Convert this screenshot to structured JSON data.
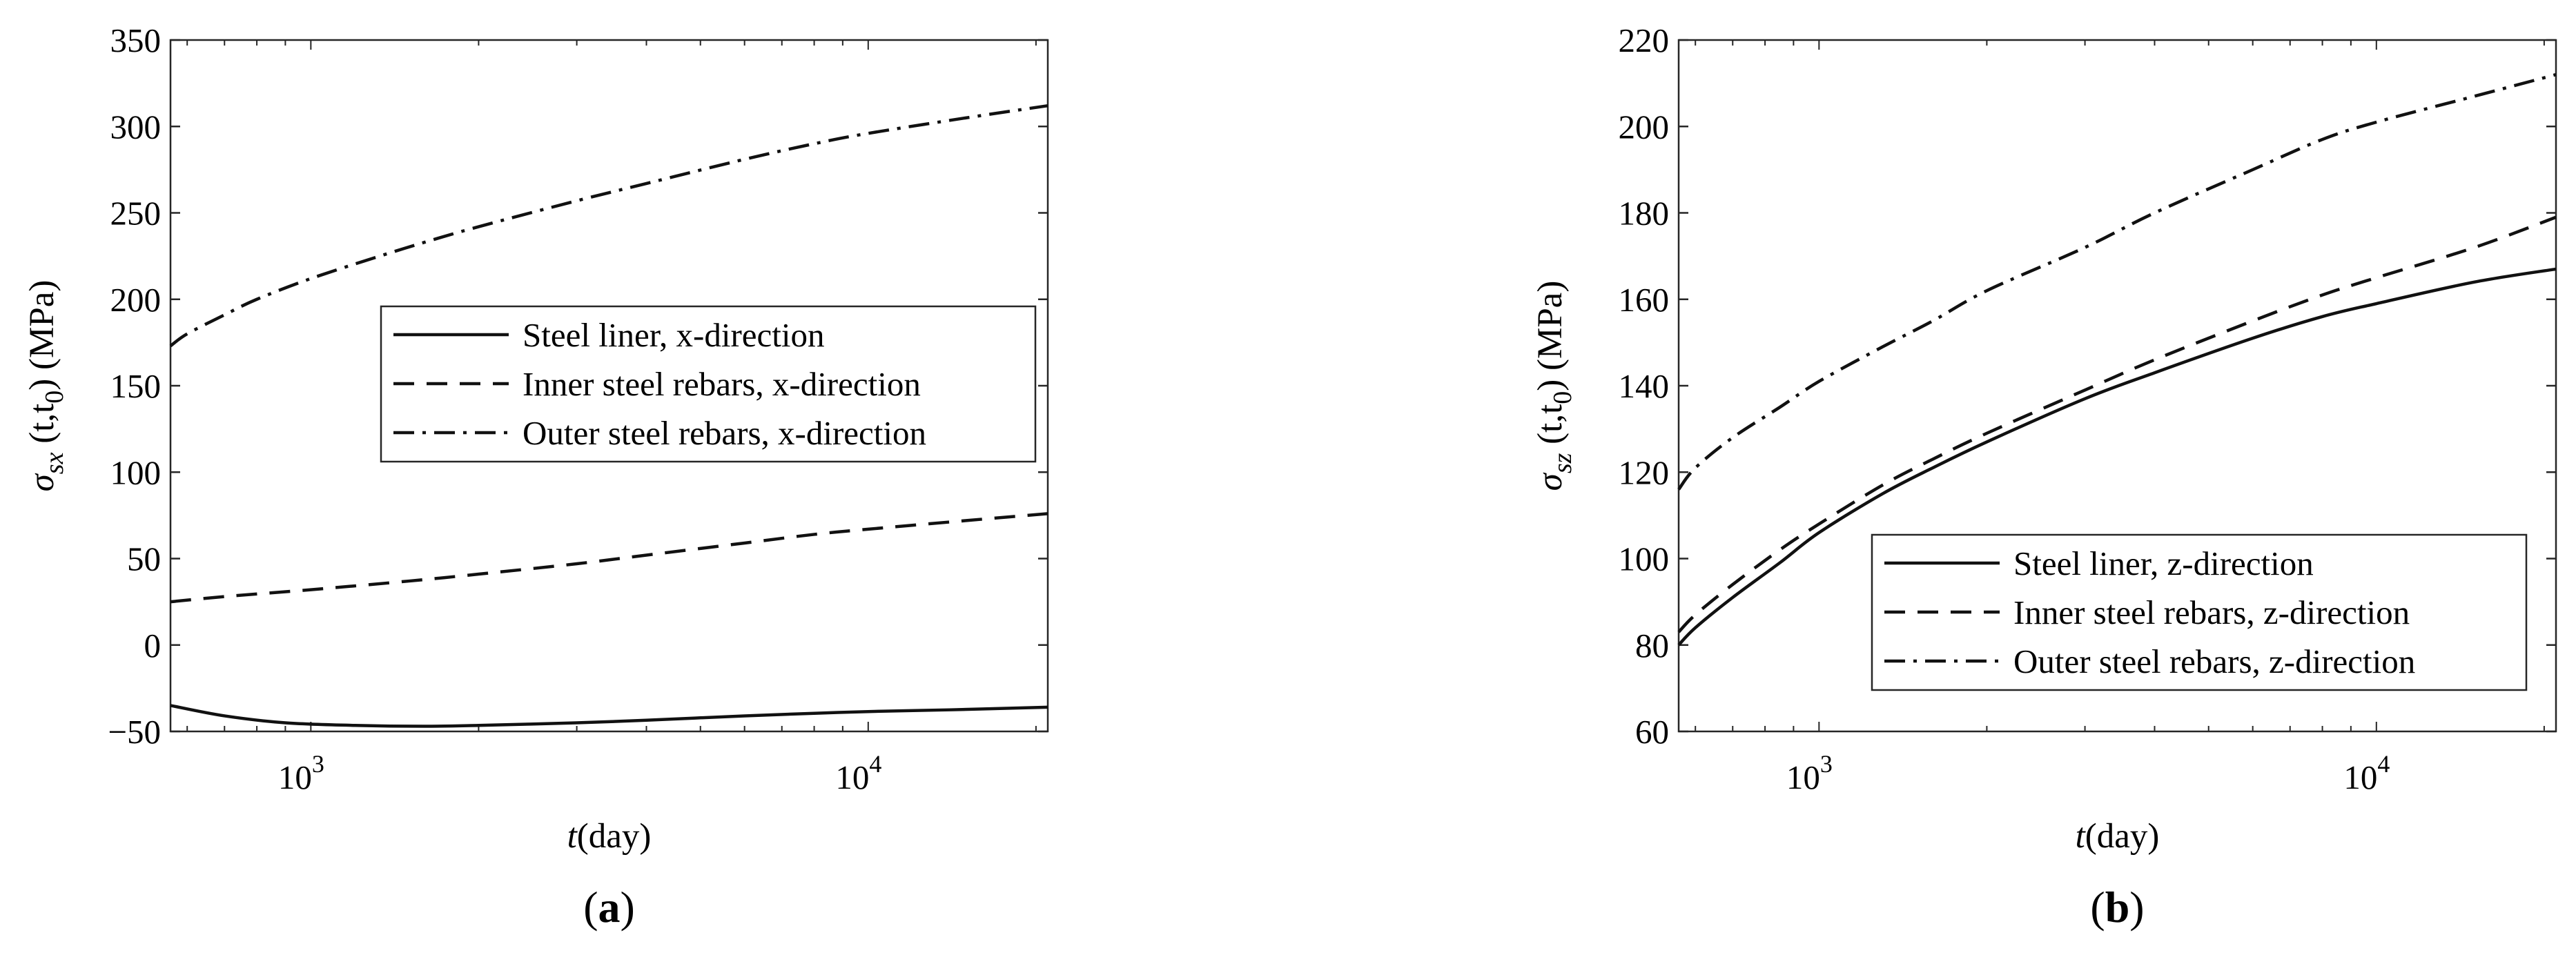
{
  "chart_data": [
    {
      "type": "line",
      "panel_label": "(a)",
      "xlabel_var": "t",
      "xlabel_unit": "(day)",
      "ylabel_sym": "σ",
      "ylabel_sub": "sx",
      "ylabel_args": "(t,t",
      "ylabel_args_sub": "0",
      "ylabel_unit": ") (MPa)",
      "xscale": "log",
      "xlim": [
        560,
        21000
      ],
      "ylim": [
        -50,
        350
      ],
      "yticks": [
        -50,
        0,
        50,
        100,
        150,
        200,
        250,
        300,
        350
      ],
      "xticks": [
        {
          "base": "10",
          "exp": "3",
          "value": 1000
        },
        {
          "base": "10",
          "exp": "4",
          "value": 10000
        }
      ],
      "legend_position": "center-right",
      "grid": false,
      "series": [
        {
          "name": "Steel liner, x-direction",
          "style": "solid",
          "x": [
            560,
            700,
            900,
            1200,
            1600,
            2000,
            3000,
            4000,
            6000,
            8000,
            10000,
            14000,
            21000
          ],
          "y": [
            -35,
            -41,
            -45,
            -46.5,
            -47,
            -46.5,
            -45,
            -43.5,
            -41,
            -39.5,
            -38.5,
            -37.5,
            -36
          ]
        },
        {
          "name": "Inner steel rebars, x-direction",
          "style": "dashed",
          "x": [
            560,
            700,
            1000,
            1500,
            2000,
            3000,
            4000,
            6000,
            8000,
            10000,
            15000,
            21000
          ],
          "y": [
            25,
            28,
            32,
            37,
            41,
            47,
            52,
            59,
            64,
            67,
            72,
            76
          ]
        },
        {
          "name": "Outer steel rebars, x-direction",
          "style": "dashdot",
          "x": [
            560,
            600,
            700,
            800,
            1000,
            1300,
            1600,
            2000,
            3000,
            4000,
            6000,
            8000,
            10000,
            15000,
            21000
          ],
          "y": [
            173,
            180,
            191,
            200,
            212,
            224,
            233,
            242,
            257,
            267,
            281,
            290,
            296,
            305,
            312
          ]
        }
      ]
    },
    {
      "type": "line",
      "panel_label": "(b)",
      "xlabel_var": "t",
      "xlabel_unit": "(day)",
      "ylabel_sym": "σ",
      "ylabel_sub": "sz",
      "ylabel_args": "(t,t",
      "ylabel_args_sub": "0",
      "ylabel_unit": ") (MPa)",
      "xscale": "log",
      "xlim": [
        560,
        21000
      ],
      "ylim": [
        60,
        220
      ],
      "yticks": [
        60,
        80,
        100,
        120,
        140,
        160,
        180,
        200,
        220
      ],
      "xticks": [
        {
          "base": "10",
          "exp": "3",
          "value": 1000
        },
        {
          "base": "10",
          "exp": "4",
          "value": 10000
        }
      ],
      "legend_position": "bottom-right",
      "grid": false,
      "series": [
        {
          "name": "Steel liner, z-direction",
          "style": "solid",
          "x": [
            560,
            600,
            700,
            850,
            1000,
            1300,
            1600,
            2000,
            3000,
            4000,
            6000,
            8000,
            10000,
            15000,
            21000
          ],
          "y": [
            80,
            84,
            91,
            99,
            106,
            115,
            121,
            127,
            137,
            143,
            151,
            156,
            159,
            164,
            167
          ]
        },
        {
          "name": "Inner steel rebars, z-direction",
          "style": "dashed",
          "x": [
            560,
            600,
            700,
            850,
            1000,
            1300,
            1600,
            2000,
            3000,
            4000,
            6000,
            8000,
            10000,
            15000,
            21000
          ],
          "y": [
            83,
            87,
            94,
            102,
            108,
            117,
            123,
            129,
            139,
            146,
            155,
            161,
            165,
            172,
            179
          ]
        },
        {
          "name": "Outer steel rebars, z-direction",
          "style": "dashdot",
          "x": [
            560,
            600,
            700,
            850,
            1000,
            1300,
            1600,
            2000,
            3000,
            4000,
            6000,
            8000,
            10000,
            15000,
            21000
          ],
          "y": [
            116,
            121,
            128,
            135,
            141,
            149,
            155,
            162,
            172,
            180,
            190,
            197,
            201,
            207,
            212
          ]
        }
      ]
    }
  ]
}
